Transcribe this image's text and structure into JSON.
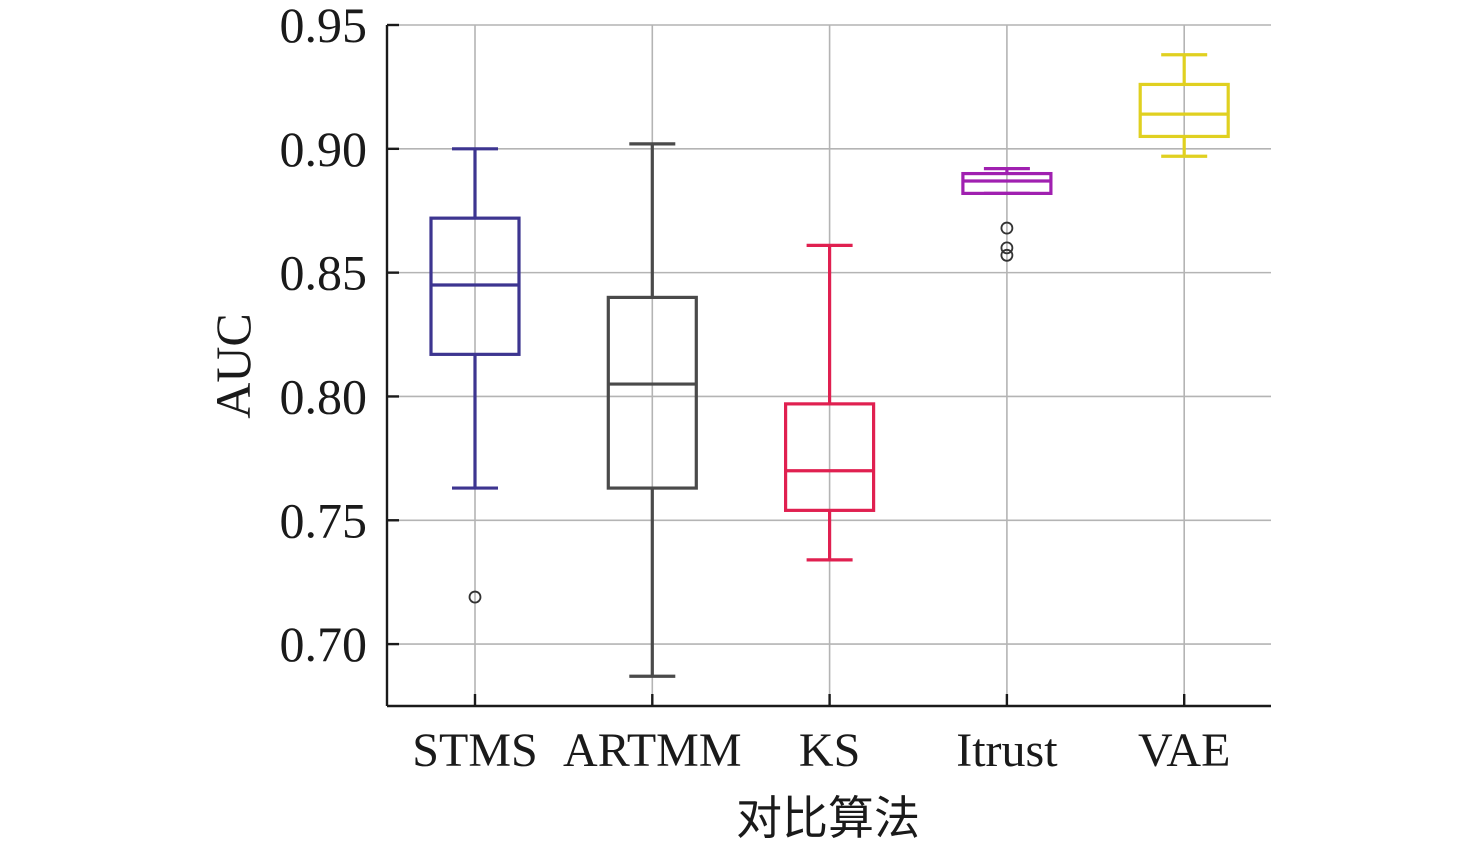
{
  "chart_data": {
    "type": "box",
    "xlabel": "对比算法",
    "ylabel": "AUC",
    "ylim": [
      0.675,
      0.95
    ],
    "yticks": [
      "0.70",
      "0.75",
      "0.80",
      "0.85",
      "0.90",
      "0.95"
    ],
    "grid": true,
    "categories": [
      "STMS",
      "ARTMM",
      "KS",
      "Itrust",
      "VAE"
    ],
    "series": [
      {
        "category": "STMS",
        "min": 0.763,
        "q1": 0.817,
        "median": 0.845,
        "q3": 0.872,
        "max": 0.9,
        "outliers": [
          0.719
        ],
        "color": "#3d3590"
      },
      {
        "category": "ARTMM",
        "min": 0.687,
        "q1": 0.763,
        "median": 0.805,
        "q3": 0.84,
        "max": 0.902,
        "outliers": [],
        "color": "#4a4a4a"
      },
      {
        "category": "KS",
        "min": 0.734,
        "q1": 0.754,
        "median": 0.77,
        "q3": 0.797,
        "max": 0.861,
        "outliers": [],
        "color": "#e02050"
      },
      {
        "category": "Itrust",
        "min": 0.882,
        "q1": 0.882,
        "median": 0.887,
        "q3": 0.89,
        "max": 0.892,
        "outliers": [
          0.868,
          0.86,
          0.857
        ],
        "color": "#a020b0"
      },
      {
        "category": "VAE",
        "min": 0.897,
        "q1": 0.905,
        "median": 0.914,
        "q3": 0.926,
        "max": 0.938,
        "outliers": [],
        "color": "#e0d020"
      }
    ]
  }
}
